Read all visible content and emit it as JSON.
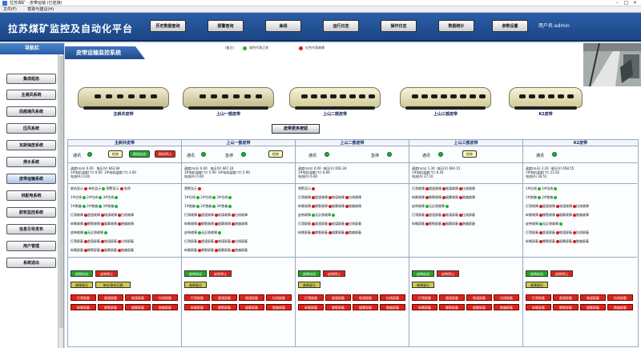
{
  "window": {
    "title": "拉苏煤矿 - 皮带运输 (已连接)",
    "menu": [
      "文件(F)",
      "帮助与建议(H)"
    ]
  },
  "header": {
    "app_title": "拉苏煤矿监控及自动化平台",
    "nav": [
      "历史数据查询",
      "报警查询",
      "曲线",
      "运行日志",
      "操作日志",
      "数据统计",
      "参数设置"
    ],
    "user": "用户名:admin"
  },
  "sidebar": {
    "title": "导航栏",
    "items": [
      "集成组态",
      "主通风系统",
      "局部通风系统",
      "压风系统",
      "瓦斯抽放系统",
      "排水系统",
      "皮带运输系统",
      "供配电系统",
      "胶轮监控系统",
      "信息引导发布",
      "用户管理",
      "系统退出"
    ]
  },
  "main": {
    "page_title": "皮带运输监控系统",
    "legend": {
      "note": "(备注)",
      "green": "绿色代表正常",
      "red": "红色代表故障"
    },
    "more_button": "皮带更多按钮"
  },
  "belts": [
    {
      "name": "主斜井皮带",
      "ctrl": [
        "通讯",
        "检修",
        "联机启动",
        "联机停止"
      ],
      "speed": "速度(m/s)   0.00",
      "volt": "电压(V)  663.94",
      "curr": "电流(A)   0.00",
      "t1": "1#电机温度(℃)   0.00",
      "t2": "2#电机温度(℃)   3.60",
      "faults": [
        [
          "联机显示",
          "单机显示",
          "预警显示",
          "急停"
        ],
        [
          "1#拉线",
          "2#拉线",
          "3#拉线"
        ],
        [
          "1#跑偏",
          "2#跑偏",
          "3#跑偏"
        ],
        [
          "打滑故障",
          "超速故障",
          "堆煤故障",
          "拉线故障"
        ],
        [
          "纵撕故障",
          "撕裂故障",
          "烟雾故障",
          "跑偏故障"
        ],
        [
          "皮带故障",
          "无反馈故障"
        ],
        [
          "打滑屏蔽",
          "超速屏蔽",
          "堆煤屏蔽",
          "拉线屏蔽"
        ],
        [
          "纵撕屏蔽",
          "撕裂屏蔽",
          "烟雾屏蔽",
          "跑偏屏蔽"
        ]
      ],
      "actions": [
        "皮带启动",
        "皮带停止",
        "故障复位",
        "单机/联机切换"
      ]
    },
    {
      "name": "上山一部皮带",
      "ctrl": [
        "通讯",
        "急停",
        "检修"
      ],
      "speed": "速度(m/s)   0.00",
      "volt": "电压(V)  667.24",
      "curr": "电流(A)   0.00",
      "t1": "1#电机温度(℃)   5.90",
      "t2": "2#电机温度(℃)   5.90",
      "faults": [
        [
          "预警显示"
        ],
        [
          "1#拉线",
          "2#拉线",
          "3#拉线"
        ],
        [
          "1#跑偏",
          "2#跑偏",
          "3#跑偏"
        ],
        [
          "打滑故障",
          "超速故障",
          "堆煤故障",
          "拉线故障"
        ],
        [
          "纵撕故障",
          "撕裂故障",
          "烟雾故障",
          "跑偏故障"
        ],
        [
          "皮带故障",
          "无反馈故障"
        ],
        [
          "打滑屏蔽",
          "超速屏蔽",
          "堆煤屏蔽",
          "拉线屏蔽"
        ],
        [
          "纵撕屏蔽",
          "撕裂屏蔽",
          "烟雾屏蔽",
          "跑偏屏蔽"
        ]
      ],
      "actions": [
        "皮带启动",
        "皮带停止",
        "故障复位"
      ]
    },
    {
      "name": "上山二部皮带",
      "ctrl": [
        "通讯",
        "急停"
      ],
      "speed": "速度(m/s)   0.00",
      "volt": "电压(V)  656.34",
      "curr": "电流(A)   6.60",
      "t1": "1#电机温度(℃)   6.69",
      "t2": "",
      "faults": [
        [
          "预警显示"
        ],
        [
          "打滑故障",
          "超速故障",
          "堆煤故障",
          "拉线故障"
        ],
        [
          "纵撕故障",
          "撕裂故障",
          "烟雾故障",
          "跑偏故障"
        ],
        [
          "皮带故障",
          "无反馈故障"
        ],
        [
          "打滑屏蔽",
          "超速屏蔽",
          "堆煤屏蔽",
          "拉线屏蔽"
        ],
        [
          "纵撕屏蔽",
          "撕裂屏蔽",
          "烟雾屏蔽",
          "跑偏屏蔽"
        ]
      ],
      "actions": [
        "皮带启动",
        "皮带停止",
        "故障复位"
      ]
    },
    {
      "name": "上山三部皮带",
      "ctrl": [
        "通讯",
        "检修"
      ],
      "speed": "速度(m/s)   1.30",
      "volt": "电压(V)  664.15",
      "curr": "电流(A)  27.10",
      "t1": "1#电机温度(℃)   6.42",
      "t2": "",
      "faults": [
        [
          "打滑故障",
          "超速故障",
          "堆煤故障",
          "拉线故障"
        ],
        [
          "纵撕故障",
          "撕裂故障",
          "烟雾故障",
          "跑偏故障"
        ],
        [
          "皮带故障",
          "无反馈故障"
        ],
        [
          "打滑屏蔽",
          "超速屏蔽",
          "堆煤屏蔽",
          "拉线屏蔽"
        ],
        [
          "纵撕屏蔽",
          "撕裂屏蔽",
          "烟雾屏蔽",
          "跑偏屏蔽"
        ]
      ],
      "actions": [
        "皮带启动",
        "皮带停止",
        "故障复位"
      ]
    },
    {
      "name": "K2皮带",
      "ctrl": [
        "通讯"
      ],
      "speed": "速度(m/s)   2.20",
      "volt": "电压(V)  658.55",
      "curr": "电流(A)  36.51",
      "t1": "1#电机温度(℃)   11.62",
      "t2": "",
      "faults": [
        [
          "1#拉线",
          "2#拉线"
        ],
        [
          "1#跑偏",
          "2#跑偏"
        ],
        [
          "打滑故障",
          "超速故障",
          "堆煤故障",
          "拉线故障"
        ],
        [
          "纵撕故障",
          "撕裂故障",
          "烟雾故障",
          "跑偏故障"
        ],
        [
          "皮带故障",
          "无反馈故障"
        ],
        [
          "打滑屏蔽",
          "超速屏蔽",
          "堆煤屏蔽",
          "拉线屏蔽"
        ],
        [
          "纵撕屏蔽",
          "撕裂屏蔽",
          "烟雾屏蔽",
          "跑偏屏蔽"
        ]
      ],
      "actions": [
        "皮带启动",
        "皮带停止",
        "故障复位"
      ]
    }
  ],
  "shield_buttons": [
    [
      "打滑屏蔽",
      "超速屏蔽",
      "堆煤屏蔽",
      "拉线屏蔽"
    ],
    [
      "纵撕屏蔽",
      "撕裂屏蔽",
      "烟雾屏蔽",
      "跑偏屏蔽"
    ]
  ],
  "colors": {
    "ok": "#1fb22a",
    "fault": "#d81a1a",
    "header": "#2a5ea9"
  }
}
